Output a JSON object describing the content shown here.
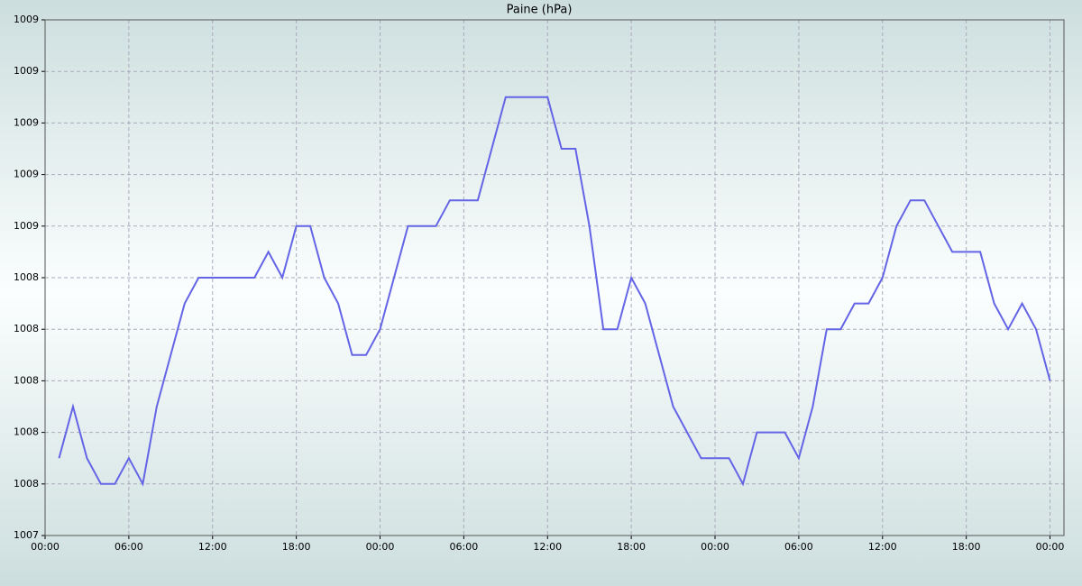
{
  "chart_data": {
    "type": "line",
    "title": "Paine (hPa)",
    "x": [
      1,
      2,
      3,
      4,
      5,
      6,
      7,
      8,
      9,
      10,
      11,
      12,
      13,
      14,
      15,
      16,
      17,
      18,
      19,
      20,
      21,
      22,
      23,
      24,
      25,
      26,
      27,
      28,
      29,
      30,
      31,
      32,
      33,
      34,
      35,
      36,
      37,
      38,
      39,
      40,
      41,
      42,
      43,
      44,
      45,
      46,
      47,
      48,
      49,
      50,
      51,
      52,
      53,
      54,
      55,
      56,
      57,
      58,
      59,
      60,
      61,
      62,
      63,
      64,
      65,
      66,
      67,
      68,
      69,
      70,
      71,
      72
    ],
    "series": [
      {
        "name": "Paine",
        "color": "#6464e6",
        "values": [
          1007.7,
          1007.9,
          1007.7,
          1007.6,
          1007.6,
          1007.7,
          1007.6,
          1007.9,
          1008.1,
          1008.3,
          1008.4,
          1008.4,
          1008.4,
          1008.4,
          1008.4,
          1008.5,
          1008.4,
          1008.6,
          1008.6,
          1008.4,
          1008.3,
          1008.1,
          1008.1,
          1008.2,
          1008.4,
          1008.6,
          1008.6,
          1008.6,
          1008.7,
          1008.7,
          1008.7,
          1008.9,
          1009.1,
          1009.1,
          1009.1,
          1009.1,
          1008.9,
          1008.9,
          1008.6,
          1008.2,
          1008.2,
          1008.4,
          1008.3,
          1008.1,
          1007.9,
          1007.8,
          1007.7,
          1007.7,
          1007.7,
          1007.6,
          1007.8,
          1007.8,
          1007.8,
          1007.7,
          1007.9,
          1008.2,
          1008.2,
          1008.3,
          1008.3,
          1008.4,
          1008.6,
          1008.7,
          1008.7,
          1008.6,
          1008.5,
          1008.5,
          1008.5,
          1008.3,
          1008.2,
          1008.3,
          1008.2,
          1008.0
        ]
      }
    ],
    "xlim": [
      0,
      73
    ],
    "xticks": [
      {
        "value": 0,
        "label": "00:00"
      },
      {
        "value": 6,
        "label": "06:00"
      },
      {
        "value": 12,
        "label": "12:00"
      },
      {
        "value": 18,
        "label": "18:00"
      },
      {
        "value": 24,
        "label": "00:00"
      },
      {
        "value": 30,
        "label": "06:00"
      },
      {
        "value": 36,
        "label": "12:00"
      },
      {
        "value": 42,
        "label": "18:00"
      },
      {
        "value": 48,
        "label": "00:00"
      },
      {
        "value": 54,
        "label": "06:00"
      },
      {
        "value": 60,
        "label": "12:00"
      },
      {
        "value": 66,
        "label": "18:00"
      },
      {
        "value": 72,
        "label": "00:00"
      }
    ],
    "ylim": [
      1007.4,
      1009.4
    ],
    "yticks": [
      {
        "value": 1007.4,
        "label": "1007"
      },
      {
        "value": 1007.6,
        "label": "1008"
      },
      {
        "value": 1007.8,
        "label": "1008"
      },
      {
        "value": 1008.0,
        "label": "1008"
      },
      {
        "value": 1008.2,
        "label": "1008"
      },
      {
        "value": 1008.4,
        "label": "1008"
      },
      {
        "value": 1008.6,
        "label": "1009"
      },
      {
        "value": 1008.8,
        "label": "1009"
      },
      {
        "value": 1009.0,
        "label": "1009"
      },
      {
        "value": 1009.2,
        "label": "1009"
      },
      {
        "value": 1009.4,
        "label": "1009"
      }
    ],
    "grid": true
  }
}
